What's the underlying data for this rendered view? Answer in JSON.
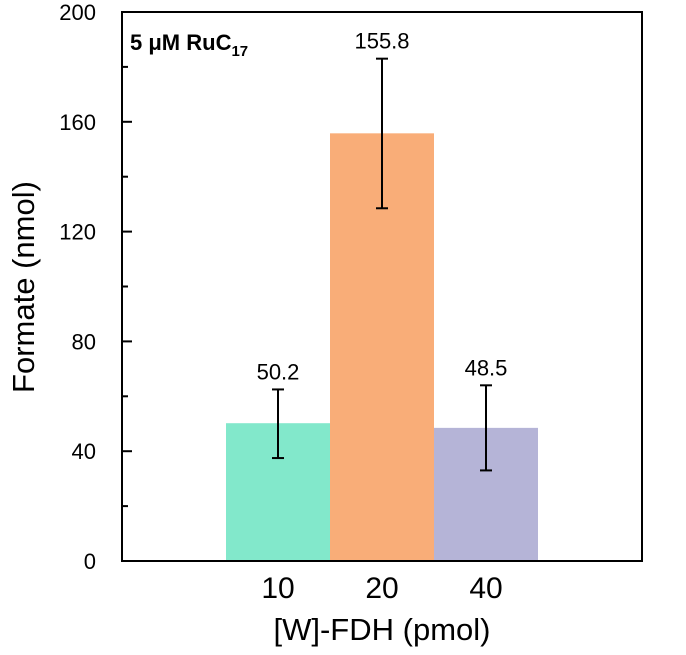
{
  "chart_data": {
    "type": "bar",
    "title": "",
    "annotation": {
      "main": "5 μM RuC",
      "subscript": "17"
    },
    "xlabel": "[W]-FDH (pmol)",
    "ylabel": "Formate (nmol)",
    "categories": [
      "10",
      "20",
      "40"
    ],
    "values": [
      50.2,
      155.8,
      48.5
    ],
    "data_labels": [
      "50.2",
      "155.8",
      "48.5"
    ],
    "error_bars": [
      {
        "low": 37.5,
        "high": 62.5
      },
      {
        "low": 128.5,
        "high": 183.0
      },
      {
        "low": 33.0,
        "high": 64.0
      }
    ],
    "colors": [
      "#82e8cb",
      "#f9ad78",
      "#b5b4d7"
    ],
    "ylim": [
      0,
      200
    ],
    "y_major_ticks": [
      0,
      40,
      80,
      120,
      160,
      200
    ],
    "y_tick_labels": [
      "0",
      "40",
      "80",
      "120",
      "160",
      "200"
    ],
    "y_minor_step": 20,
    "x_domain": [
      0,
      5
    ],
    "bar_centers": [
      1.5,
      2.5,
      3.5
    ],
    "bar_width": 1,
    "grid": false,
    "legend": "none"
  }
}
